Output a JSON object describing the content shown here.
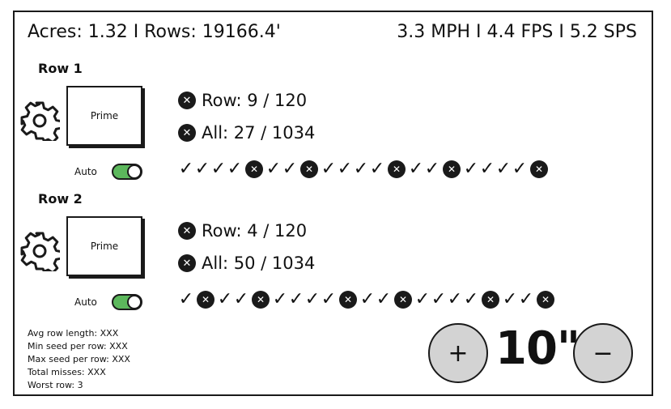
{
  "status": {
    "left": "Acres: 1.32  I Rows: 19166.4'",
    "right": "3.3 MPH  I  4.4 FPS  I  5.2 SPS"
  },
  "rows": [
    {
      "title": "Row 1",
      "prime_label": "Prime",
      "auto_label": "Auto",
      "auto_on": true,
      "row_count": "Row: 9 / 120",
      "all_count": "All: 27 / 1034",
      "history": [
        "ok",
        "ok",
        "ok",
        "ok",
        "miss",
        "ok",
        "ok",
        "miss",
        "ok",
        "ok",
        "ok",
        "ok",
        "miss",
        "ok",
        "ok",
        "miss",
        "ok",
        "ok",
        "ok",
        "ok",
        "miss"
      ]
    },
    {
      "title": "Row 2",
      "prime_label": "Prime",
      "auto_label": "Auto",
      "auto_on": true,
      "row_count": "Row: 4 / 120",
      "all_count": "All: 50 / 1034",
      "history": [
        "ok",
        "miss",
        "ok",
        "ok",
        "miss",
        "ok",
        "ok",
        "ok",
        "ok",
        "miss",
        "ok",
        "ok",
        "miss",
        "ok",
        "ok",
        "ok",
        "ok",
        "miss",
        "ok",
        "ok",
        "miss"
      ]
    }
  ],
  "stats": [
    "Avg row length: XXX",
    "Min seed per row: XXX",
    "Max seed per row: XXX",
    "Total misses: XXX",
    "Worst row: 3"
  ],
  "spacing": {
    "plus_label": "+",
    "minus_label": "−",
    "value": "10\""
  },
  "colors": {
    "toggle_on": "#5cb85c",
    "round_button": "#d3d3d3"
  }
}
